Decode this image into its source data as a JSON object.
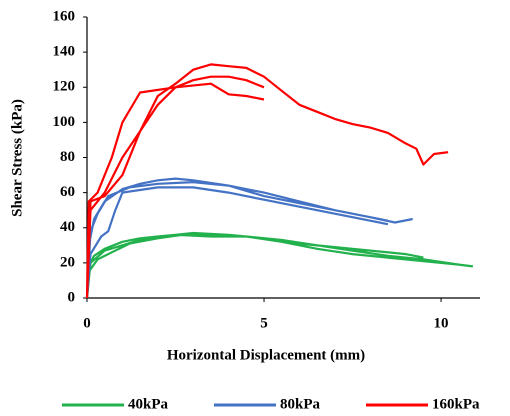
{
  "chart_data": {
    "type": "line",
    "xlabel": "Horizontal Displacement (mm)",
    "ylabel": "Shear Stress (kPa)",
    "xlim": [
      0,
      11.1
    ],
    "ylim": [
      0,
      160
    ],
    "xticks": [
      0,
      5,
      10
    ],
    "yticks": [
      0,
      20,
      40,
      60,
      80,
      100,
      120,
      140,
      160
    ],
    "grid": false,
    "legend": "bottom",
    "series": [
      {
        "name": "40kPa",
        "color": "#22b14c",
        "x": [
          0,
          0.05,
          0.2,
          0.5,
          1,
          1.5,
          2,
          2.5,
          3,
          4,
          5,
          6,
          7,
          8,
          9,
          9.5,
          null,
          0,
          0.05,
          0.3,
          0.7,
          1.2,
          2,
          2.7,
          3.5,
          4.5,
          5.5,
          6.5,
          7.5,
          8.5,
          9.5,
          10.5,
          null,
          0,
          0.1,
          0.5,
          1,
          1.5,
          2.5,
          3.5,
          4.5,
          5.5,
          6.5,
          7.5,
          8.5,
          9.5,
          10.5,
          10.9
        ],
        "values": [
          0,
          18,
          24,
          28,
          32,
          34,
          35,
          36,
          37,
          36,
          34,
          31,
          29,
          27,
          25,
          23,
          null,
          0,
          15,
          22,
          26,
          31,
          34,
          36,
          36,
          35,
          32,
          28,
          25,
          23,
          21,
          19,
          null,
          0,
          20,
          27,
          30,
          33,
          36,
          35,
          35,
          33,
          30,
          27,
          24,
          22,
          19,
          18
        ]
      },
      {
        "name": "80kPa",
        "color": "#4472c4",
        "x": [
          0,
          0.05,
          0.2,
          0.5,
          1,
          1.5,
          2,
          2.5,
          3,
          4,
          5,
          6,
          7,
          8,
          8.5,
          null,
          0,
          0.1,
          0.3,
          0.6,
          1.2,
          2,
          3,
          4,
          5,
          6,
          7,
          8,
          8.7,
          9.2,
          null,
          0,
          0.1,
          0.4,
          0.6,
          0.8,
          1,
          2,
          3,
          4,
          5,
          6,
          7,
          8,
          8.5
        ],
        "values": [
          0,
          30,
          45,
          55,
          62,
          65,
          67,
          68,
          67,
          64,
          58,
          54,
          50,
          46,
          44,
          null,
          0,
          38,
          48,
          58,
          63,
          65,
          66,
          64,
          60,
          55,
          50,
          46,
          43,
          45,
          null,
          0,
          25,
          35,
          38,
          50,
          60,
          63,
          63,
          60,
          56,
          52,
          48,
          44,
          42
        ]
      },
      {
        "name": "160kPa",
        "color": "#ff0000",
        "x": [
          0,
          0.05,
          0.3,
          0.7,
          1,
          1.5,
          2.5,
          3.5,
          4,
          4.5,
          5,
          null,
          0,
          0.1,
          0.5,
          1,
          1.5,
          2,
          2.5,
          3,
          3.5,
          4,
          4.5,
          5,
          5.5,
          6,
          6.5,
          7,
          7.5,
          8,
          8.5,
          9,
          9.3,
          9.5,
          9.8,
          10.2,
          null,
          0,
          0.1,
          0.5,
          1,
          1.5,
          2,
          2.5,
          3,
          3.5,
          4,
          4.5,
          5
        ],
        "values": [
          0,
          55,
          60,
          80,
          100,
          117,
          120,
          122,
          116,
          115,
          113,
          null,
          0,
          55,
          58,
          70,
          95,
          115,
          122,
          130,
          133,
          132,
          131,
          126,
          118,
          110,
          106,
          102,
          99,
          97,
          94,
          88,
          85,
          76,
          82,
          83,
          null,
          0,
          50,
          60,
          80,
          95,
          110,
          120,
          124,
          126,
          126,
          124,
          120
        ]
      }
    ]
  }
}
